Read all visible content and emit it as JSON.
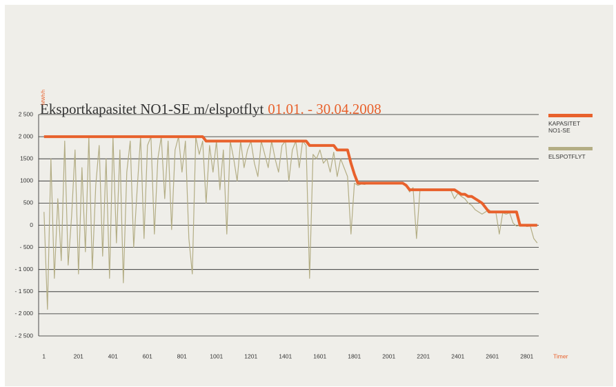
{
  "chart_data": {
    "type": "line",
    "title": "Eksportkapasitet NO1-SE m/elspotflyt",
    "subtitle": "01.01. - 30.04.2008",
    "ylabel": "MWh/h",
    "xlabel": "Timer",
    "grid": true,
    "legend": "right",
    "xlim": [
      -30,
      2870
    ],
    "xticks": [
      1,
      201,
      401,
      601,
      801,
      1001,
      1201,
      1401,
      1601,
      1801,
      2001,
      2201,
      2401,
      2601,
      2801
    ],
    "ylim": [
      -2500,
      2500
    ],
    "yticks": [
      {
        "value": -2500,
        "label": "- 2 500"
      },
      {
        "value": -2000,
        "label": "- 2 000"
      },
      {
        "value": -1500,
        "label": "- 1 500"
      },
      {
        "value": -1000,
        "label": "- 1 000"
      },
      {
        "value": -500,
        "label": "- 500"
      },
      0,
      500,
      1000,
      1500,
      {
        "value": 2000,
        "label": "2 000"
      },
      {
        "value": 2500,
        "label": "2 500"
      }
    ],
    "x": [
      1,
      21,
      41,
      61,
      81,
      101,
      121,
      141,
      161,
      181,
      201,
      221,
      241,
      261,
      281,
      301,
      321,
      341,
      361,
      381,
      401,
      421,
      441,
      461,
      481,
      501,
      521,
      541,
      561,
      581,
      601,
      621,
      641,
      661,
      681,
      701,
      721,
      741,
      761,
      781,
      801,
      821,
      841,
      861,
      881,
      901,
      921,
      941,
      961,
      981,
      1001,
      1021,
      1041,
      1061,
      1081,
      1101,
      1121,
      1141,
      1161,
      1181,
      1201,
      1221,
      1241,
      1261,
      1281,
      1301,
      1321,
      1341,
      1361,
      1381,
      1401,
      1421,
      1441,
      1461,
      1481,
      1501,
      1521,
      1541,
      1561,
      1581,
      1601,
      1621,
      1641,
      1661,
      1681,
      1701,
      1721,
      1741,
      1761,
      1781,
      1801,
      1821,
      1841,
      1861,
      1881,
      1901,
      1921,
      1941,
      1961,
      1981,
      2001,
      2021,
      2041,
      2061,
      2081,
      2101,
      2121,
      2141,
      2161,
      2181,
      2201,
      2221,
      2241,
      2261,
      2281,
      2301,
      2321,
      2341,
      2361,
      2381,
      2401,
      2421,
      2441,
      2461,
      2481,
      2501,
      2521,
      2541,
      2561,
      2581,
      2601,
      2621,
      2641,
      2661,
      2681,
      2701,
      2721,
      2741,
      2761,
      2781,
      2801,
      2821,
      2841,
      2861
    ],
    "series": [
      {
        "name": "ELSPOTFLYT",
        "color": "#b3ad84",
        "values": [
          300,
          -1900,
          1500,
          -1200,
          600,
          -800,
          1900,
          -900,
          200,
          1700,
          -1100,
          1300,
          -600,
          2000,
          -1000,
          900,
          1800,
          -700,
          1500,
          -1200,
          2000,
          -400,
          1700,
          -1300,
          1200,
          1900,
          -500,
          800,
          2000,
          -300,
          1800,
          2000,
          -200,
          1500,
          2000,
          600,
          1900,
          -100,
          1700,
          2000,
          1200,
          1900,
          -300,
          -1100,
          2000,
          1600,
          1900,
          500,
          1800,
          1200,
          1900,
          800,
          1700,
          -200,
          1900,
          1500,
          1000,
          1900,
          1300,
          1700,
          1900,
          1400,
          1100,
          1900,
          1600,
          1300,
          1900,
          1500,
          1200,
          1800,
          1900,
          1000,
          1700,
          1900,
          1300,
          1900,
          1800,
          -1200,
          1600,
          1500,
          1700,
          1400,
          1500,
          1200,
          1650,
          1100,
          1500,
          1300,
          1100,
          -200,
          950,
          900,
          930,
          920,
          950,
          940,
          930,
          960,
          950,
          940,
          950,
          940,
          950,
          940,
          930,
          900,
          750,
          850,
          -300,
          790,
          780,
          790,
          800,
          780,
          790,
          780,
          800,
          790,
          780,
          600,
          720,
          650,
          600,
          500,
          450,
          350,
          300,
          250,
          300,
          350,
          280,
          300,
          -200,
          280,
          250,
          280,
          50,
          -20,
          0,
          -10,
          -30,
          -20,
          -300,
          -400
        ]
      },
      {
        "name": "KAPASITET NO1-SE",
        "color": "#e8612c",
        "values": [
          2000,
          2000,
          2000,
          2000,
          2000,
          2000,
          2000,
          2000,
          2000,
          2000,
          2000,
          2000,
          2000,
          2000,
          2000,
          2000,
          2000,
          2000,
          2000,
          2000,
          2000,
          2000,
          2000,
          2000,
          2000,
          2000,
          2000,
          2000,
          2000,
          2000,
          2000,
          2000,
          2000,
          2000,
          2000,
          2000,
          2000,
          2000,
          2000,
          2000,
          2000,
          2000,
          2000,
          2000,
          2000,
          2000,
          2000,
          1900,
          1900,
          1900,
          1900,
          1900,
          1900,
          1900,
          1900,
          1900,
          1900,
          1900,
          1900,
          1900,
          1900,
          1900,
          1900,
          1900,
          1900,
          1900,
          1900,
          1900,
          1900,
          1900,
          1900,
          1900,
          1900,
          1900,
          1900,
          1900,
          1900,
          1800,
          1800,
          1800,
          1800,
          1800,
          1800,
          1800,
          1800,
          1700,
          1700,
          1700,
          1700,
          1400,
          1150,
          950,
          950,
          950,
          950,
          950,
          950,
          950,
          950,
          950,
          950,
          950,
          950,
          950,
          950,
          900,
          800,
          800,
          800,
          800,
          800,
          800,
          800,
          800,
          800,
          800,
          800,
          800,
          800,
          800,
          750,
          700,
          700,
          650,
          650,
          600,
          550,
          500,
          400,
          300,
          300,
          300,
          300,
          300,
          300,
          300,
          300,
          300,
          0,
          0,
          0,
          0,
          0,
          0
        ]
      }
    ]
  }
}
